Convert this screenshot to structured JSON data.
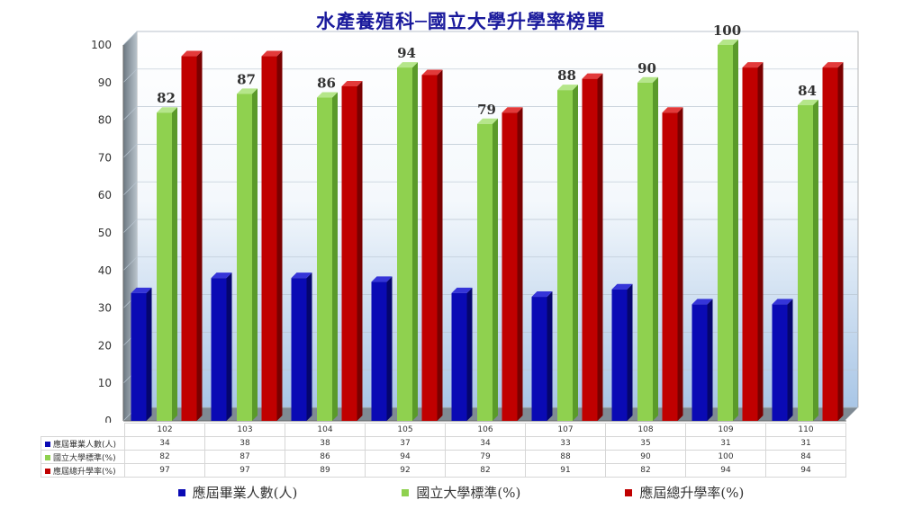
{
  "title": "水產養殖科─國立大學升學率榜單",
  "chart_data": {
    "type": "bar",
    "categories": [
      "102",
      "103",
      "104",
      "105",
      "106",
      "107",
      "108",
      "109",
      "110"
    ],
    "ylim": [
      0,
      100
    ],
    "yticks": [
      0,
      10,
      20,
      30,
      40,
      50,
      60,
      70,
      80,
      90,
      100
    ],
    "series": [
      {
        "name": "應屆畢業人數(人)",
        "table_name": "應屆畢業人數(人)",
        "color": "#0a0ab4",
        "values": [
          34,
          38,
          38,
          37,
          34,
          33,
          35,
          31,
          31
        ]
      },
      {
        "name": "國立大學標準(%)",
        "table_name": "國立大學標準(%)",
        "color": "#8fd14f",
        "values": [
          82,
          87,
          86,
          94,
          79,
          88,
          90,
          100,
          84
        ],
        "show_labels": true
      },
      {
        "name": "應屆總升學率(%)",
        "table_name": "應屆總升學率(%)",
        "color": "#c00000",
        "values": [
          97,
          97,
          89,
          92,
          82,
          91,
          82,
          94,
          94
        ]
      }
    ],
    "legend_position": "bottom",
    "grid": true
  }
}
